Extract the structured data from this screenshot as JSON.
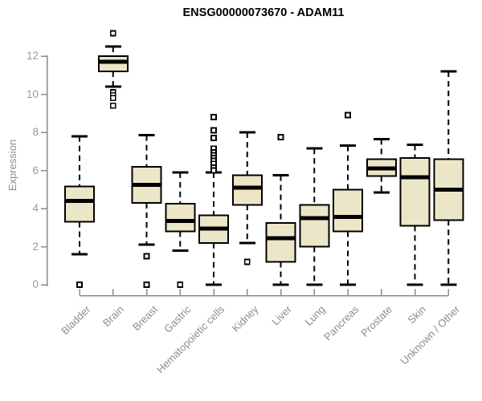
{
  "chart_data": {
    "type": "box",
    "title": "ENSG00000073670 - ADAM11",
    "xlabel": "",
    "ylabel": "Expression",
    "yticks": [
      0,
      2,
      4,
      6,
      8,
      10,
      12
    ],
    "ylim": [
      0,
      13.4
    ],
    "grid": false,
    "legend": null,
    "categories": [
      "Bladder",
      "Brain",
      "Breast",
      "Gastric",
      "Hematopoietic cells",
      "Kidney",
      "Liver",
      "Lung",
      "Pancreas",
      "Prostate",
      "Skin",
      "Unknown / Other"
    ],
    "series": [
      {
        "category": "Bladder",
        "whisker_low": 1.6,
        "q1": 3.3,
        "median": 4.4,
        "q3": 5.15,
        "whisker_high": 7.8,
        "outliers": [
          0
        ]
      },
      {
        "category": "Brain",
        "whisker_low": 10.4,
        "q1": 11.2,
        "median": 11.7,
        "q3": 12.0,
        "whisker_high": 12.5,
        "outliers": [
          13.2,
          10.1,
          9.95,
          9.8,
          9.4
        ]
      },
      {
        "category": "Breast",
        "whisker_low": 2.1,
        "q1": 4.3,
        "median": 5.25,
        "q3": 6.2,
        "whisker_high": 7.85,
        "outliers": [
          1.5,
          0
        ]
      },
      {
        "category": "Gastric",
        "whisker_low": 1.8,
        "q1": 2.8,
        "median": 3.35,
        "q3": 4.25,
        "whisker_high": 5.9,
        "outliers": [
          0
        ]
      },
      {
        "category": "Hematopoietic cells",
        "whisker_low": 0,
        "q1": 2.2,
        "median": 2.95,
        "q3": 3.65,
        "whisker_high": 5.9,
        "outliers": [
          8.8,
          8.1,
          7.7,
          7.15,
          6.95,
          6.8,
          6.65,
          6.5,
          6.35,
          6.15,
          6.0
        ]
      },
      {
        "category": "Kidney",
        "whisker_low": 2.2,
        "q1": 4.2,
        "median": 5.1,
        "q3": 5.75,
        "whisker_high": 8.0,
        "outliers": [
          1.2
        ]
      },
      {
        "category": "Liver",
        "whisker_low": 0,
        "q1": 1.2,
        "median": 2.45,
        "q3": 3.25,
        "whisker_high": 5.75,
        "outliers": [
          7.75
        ]
      },
      {
        "category": "Lung",
        "whisker_low": 0,
        "q1": 2.0,
        "median": 3.5,
        "q3": 4.2,
        "whisker_high": 7.15,
        "outliers": []
      },
      {
        "category": "Pancreas",
        "whisker_low": 0,
        "q1": 2.8,
        "median": 3.55,
        "q3": 5.0,
        "whisker_high": 7.3,
        "outliers": [
          8.9
        ]
      },
      {
        "category": "Prostate",
        "whisker_low": 4.85,
        "q1": 5.7,
        "median": 6.1,
        "q3": 6.6,
        "whisker_high": 7.65,
        "outliers": []
      },
      {
        "category": "Skin",
        "whisker_low": 0,
        "q1": 3.1,
        "median": 5.65,
        "q3": 6.65,
        "whisker_high": 7.35,
        "outliers": []
      },
      {
        "category": "Unknown / Other",
        "whisker_low": 0,
        "q1": 3.4,
        "median": 5.0,
        "q3": 6.6,
        "whisker_high": 11.2,
        "outliers": []
      }
    ],
    "colors": {
      "box_fill": "#ece6c8",
      "box_border": "#000000",
      "median": "#000000",
      "whisker": "#000000",
      "outlier_fill": "#ffffff",
      "axis": "#8a8a8a",
      "tick_label": "#9a9a9a",
      "category_label": "#8c8c8c",
      "title": "#000000"
    }
  }
}
